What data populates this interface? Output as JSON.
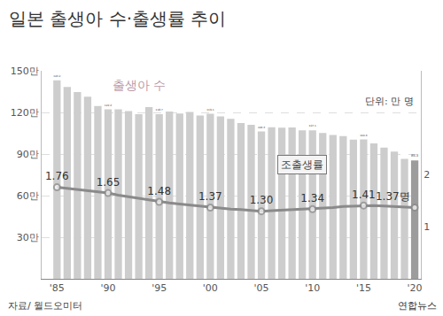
{
  "chart_data": {
    "type": "bar",
    "title": "일본 출생아 수·출생률 추이",
    "categories": [
      "'85",
      null,
      null,
      null,
      null,
      "'90",
      null,
      null,
      null,
      null,
      "'95",
      null,
      null,
      null,
      null,
      "'00",
      null,
      null,
      null,
      null,
      "'05",
      null,
      null,
      null,
      null,
      "'10",
      null,
      null,
      null,
      null,
      "'15",
      null,
      null,
      null,
      null,
      "'20"
    ],
    "series": [
      {
        "name": "출생아 수",
        "type": "bar",
        "color": "#cdcdcd",
        "colors": [
          "#cdcdcd",
          "#cdcdcd",
          "#cdcdcd",
          "#cdcdcd",
          "#cdcdcd",
          "#cdcdcd",
          "#cdcdcd",
          "#cdcdcd",
          "#cdcdcd",
          "#cdcdcd",
          "#cdcdcd",
          "#cdcdcd",
          "#cdcdcd",
          "#cdcdcd",
          "#cdcdcd",
          "#cdcdcd",
          "#cdcdcd",
          "#cdcdcd",
          "#cdcdcd",
          "#cdcdcd",
          "#cdcdcd",
          "#cdcdcd",
          "#cdcdcd",
          "#cdcdcd",
          "#cdcdcd",
          "#cdcdcd",
          "#cdcdcd",
          "#cdcdcd",
          "#cdcdcd",
          "#cdcdcd",
          "#cdcdcd",
          "#cdcdcd",
          "#cdcdcd",
          "#cdcdcd",
          "#cdcdcd",
          "#9c9c9c"
        ],
        "values": [
          143.2,
          138.3,
          134.7,
          131.4,
          124.7,
          122.2,
          122.3,
          120.9,
          118.8,
          123.8,
          118.7,
          120.7,
          119.2,
          120.3,
          117.8,
          119.1,
          117.1,
          115.4,
          112.4,
          111.1,
          106.3,
          109.3,
          109.0,
          109.1,
          107.0,
          107.1,
          105.1,
          103.7,
          103.0,
          100.4,
          100.6,
          97.7,
          94.6,
          91.8,
          86.5,
          85.3
        ],
        "value_labels": [
          "143.2",
          null,
          null,
          null,
          null,
          "122.2",
          null,
          null,
          null,
          null,
          "118.7",
          null,
          null,
          null,
          null,
          "119.1",
          null,
          null,
          null,
          null,
          "106.3",
          null,
          null,
          null,
          null,
          "107.1",
          null,
          null,
          null,
          null,
          "100.6",
          null,
          null,
          null,
          null,
          "85.3"
        ]
      },
      {
        "name": "조출생률",
        "type": "line",
        "axis": "y2",
        "color": "#8a8a8a",
        "marker": "circle",
        "values": [
          1.76,
          1.74,
          1.72,
          1.7,
          1.67,
          1.65,
          1.61,
          1.58,
          1.55,
          1.51,
          1.48,
          1.46,
          1.44,
          1.42,
          1.39,
          1.37,
          1.36,
          1.34,
          1.33,
          1.31,
          1.3,
          1.31,
          1.32,
          1.33,
          1.33,
          1.34,
          1.36,
          1.37,
          1.39,
          1.4,
          1.41,
          1.41,
          1.4,
          1.39,
          1.38,
          1.37
        ],
        "value_labels": [
          "1.76",
          null,
          null,
          null,
          null,
          "1.65",
          null,
          null,
          null,
          null,
          "1.48",
          null,
          null,
          null,
          null,
          "1.37",
          null,
          null,
          null,
          null,
          "1.30",
          null,
          null,
          null,
          null,
          "1.34",
          null,
          null,
          null,
          null,
          "1.41",
          null,
          null,
          null,
          null,
          "1.37명"
        ]
      }
    ],
    "ylim": [
      0,
      150
    ],
    "yticks": [
      {
        "value": 30,
        "label": "30만"
      },
      {
        "value": 60,
        "label": "60만"
      },
      {
        "value": 90,
        "label": "90만"
      },
      {
        "value": 120,
        "label": "120만"
      },
      {
        "value": 150,
        "label": "150만"
      }
    ],
    "y2lim": [
      0,
      4
    ],
    "y2ticks": [
      1,
      2
    ],
    "grid": true,
    "data_labels": true,
    "annotations": [
      "단위: 만 명",
      "자료/ 월드오미터",
      "연합뉴스"
    ]
  }
}
